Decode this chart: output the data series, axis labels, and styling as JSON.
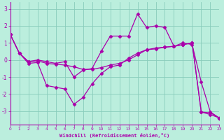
{
  "line1_x": [
    0,
    1,
    2,
    3,
    4,
    5,
    6,
    7,
    8,
    9,
    10,
    11,
    12,
    13,
    14,
    15,
    16,
    17,
    18,
    19,
    20,
    21,
    22,
    23
  ],
  "line1_y": [
    1.5,
    0.4,
    -0.1,
    0.0,
    -0.1,
    -0.2,
    -0.1,
    -1.0,
    -0.6,
    -0.5,
    0.5,
    1.4,
    1.4,
    1.4,
    2.7,
    1.9,
    2.0,
    1.9,
    0.8,
    1.0,
    0.9,
    -1.3,
    -3.05,
    -3.4
  ],
  "line2_x": [
    0,
    1,
    2,
    3,
    4,
    5,
    6,
    7,
    8,
    9,
    10,
    11,
    12,
    13,
    14,
    15,
    16,
    17,
    18,
    19,
    20,
    21,
    22,
    23
  ],
  "line2_y": [
    1.5,
    0.4,
    -0.1,
    -0.05,
    -0.2,
    -0.25,
    -0.3,
    -0.4,
    -0.55,
    -0.55,
    -0.45,
    -0.3,
    -0.2,
    0.0,
    0.3,
    0.6,
    0.7,
    0.75,
    0.8,
    0.9,
    1.0,
    -3.05,
    -3.1,
    -3.4
  ],
  "line3_x": [
    0,
    1,
    2,
    3,
    4,
    5,
    6,
    7,
    8,
    9,
    10,
    11,
    12,
    13,
    14,
    15,
    16,
    17,
    18,
    19,
    20,
    21,
    22,
    23
  ],
  "line3_y": [
    1.5,
    0.4,
    -0.2,
    -0.15,
    -1.5,
    -1.6,
    -1.7,
    -2.6,
    -2.2,
    -1.4,
    -0.8,
    -0.4,
    -0.3,
    0.1,
    0.4,
    0.6,
    0.65,
    0.75,
    0.8,
    0.9,
    1.0,
    -3.05,
    -3.2,
    -3.4
  ],
  "color": "#aa00aa",
  "bg_color": "#bbeedd",
  "grid_color": "#88ccbb",
  "xlabel": "Windchill (Refroidissement éolien,°C)",
  "xlim": [
    0,
    23
  ],
  "ylim": [
    -3.8,
    3.4
  ],
  "yticks": [
    -3,
    -2,
    -1,
    0,
    1,
    2,
    3
  ],
  "xticks": [
    0,
    1,
    2,
    3,
    4,
    5,
    6,
    7,
    8,
    9,
    10,
    11,
    12,
    13,
    14,
    15,
    16,
    17,
    18,
    19,
    20,
    21,
    22,
    23
  ],
  "markersize": 2.5,
  "linewidth": 0.9
}
